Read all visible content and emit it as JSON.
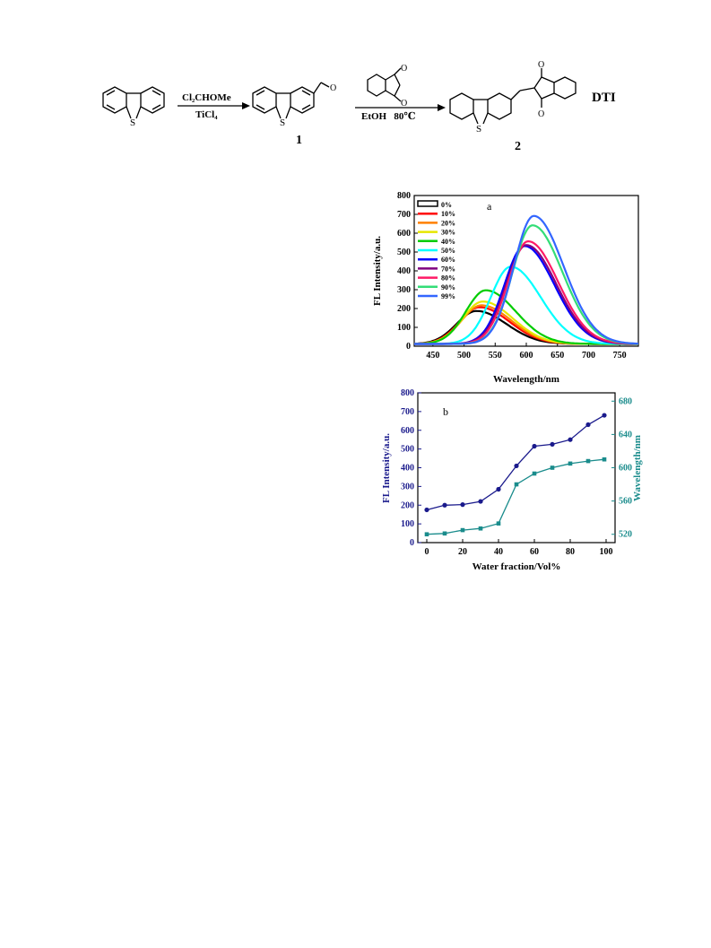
{
  "scheme": {
    "reagent1_top": "Cl₂CHOMe",
    "reagent1_bottom": "TiCl₄",
    "reagent2_bottom": "EtOH   80℃",
    "compound1_label": "1",
    "compound2_label": "2",
    "product_name": "DTI",
    "sulfur_label": "S",
    "oxygen_label": "O"
  },
  "chart_data": [
    {
      "type": "line",
      "panel_label": "a",
      "xlabel": "Wavelength/nm",
      "ylabel": "FL Intensity/a.u.",
      "xlim": [
        420,
        780
      ],
      "ylim": [
        0,
        800
      ],
      "xticks": [
        450,
        500,
        550,
        600,
        650,
        700,
        750
      ],
      "yticks": [
        0,
        100,
        200,
        300,
        400,
        500,
        600,
        700,
        800
      ],
      "legend_position": "top-left",
      "series": [
        {
          "name": "0%",
          "color": "#000000",
          "peak": 520,
          "max": 175
        },
        {
          "name": "10%",
          "color": "#ff0000",
          "peak": 525,
          "max": 195
        },
        {
          "name": "20%",
          "color": "#ff8000",
          "peak": 528,
          "max": 205
        },
        {
          "name": "30%",
          "color": "#e6e600",
          "peak": 530,
          "max": 225
        },
        {
          "name": "40%",
          "color": "#00cc00",
          "peak": 535,
          "max": 285
        },
        {
          "name": "50%",
          "color": "#00ffff",
          "peak": 575,
          "max": 410
        },
        {
          "name": "60%",
          "color": "#0000ff",
          "peak": 597,
          "max": 520
        },
        {
          "name": "70%",
          "color": "#800080",
          "peak": 600,
          "max": 525
        },
        {
          "name": "80%",
          "color": "#ff1a66",
          "peak": 603,
          "max": 545
        },
        {
          "name": "90%",
          "color": "#33dd77",
          "peak": 610,
          "max": 630
        },
        {
          "name": "99%",
          "color": "#3366ff",
          "peak": 612,
          "max": 680
        }
      ]
    },
    {
      "type": "line",
      "panel_label": "b",
      "xlabel": "Water fraction/Vol%",
      "ylabel_left": "FL Intensity/a.u.",
      "ylabel_right": "Wavelength/nm",
      "xlim": [
        -5,
        105
      ],
      "ylim_left": [
        0,
        800
      ],
      "ylim_right": [
        510,
        690
      ],
      "xticks": [
        0,
        20,
        40,
        60,
        80,
        100
      ],
      "yticks_left": [
        0,
        100,
        200,
        300,
        400,
        500,
        600,
        700,
        800
      ],
      "yticks_right": [
        520,
        560,
        600,
        640,
        680
      ],
      "series": [
        {
          "name": "FL Intensity",
          "axis": "left",
          "color": "#1a1a8c",
          "marker": "circle",
          "x": [
            0,
            10,
            20,
            30,
            40,
            50,
            60,
            70,
            80,
            90,
            99
          ],
          "y": [
            175,
            200,
            203,
            220,
            285,
            410,
            515,
            525,
            550,
            630,
            680
          ]
        },
        {
          "name": "Wavelength",
          "axis": "right",
          "color": "#1a8c8c",
          "marker": "square",
          "x": [
            0,
            10,
            20,
            30,
            40,
            50,
            60,
            70,
            80,
            90,
            99
          ],
          "y": [
            520,
            521,
            525,
            527,
            533,
            580,
            593,
            600,
            605,
            608,
            610
          ]
        }
      ]
    }
  ]
}
